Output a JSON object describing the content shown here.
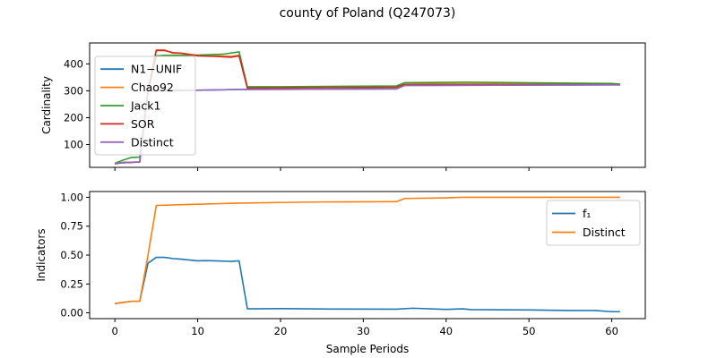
{
  "title": "county of Poland (Q247073)",
  "colors": {
    "blue": "#1f77b4",
    "orange": "#ff7f0e",
    "green": "#2ca02c",
    "red": "#d62728",
    "purple": "#9467bd"
  },
  "chart_data": [
    {
      "type": "line",
      "ylabel": "Cardinality",
      "xlim": [
        -3.05,
        64.05
      ],
      "ylim": [
        15,
        478
      ],
      "xticks": [
        0,
        10,
        20,
        30,
        40,
        50,
        60
      ],
      "yticks": [
        100,
        200,
        300,
        400
      ],
      "x_tick_labels_visible": false,
      "legend_position": "center-left",
      "grid": false,
      "series": [
        {
          "name": "N1−UNIF",
          "color": "#1f77b4",
          "points": [
            [
              0,
              30
            ],
            [
              1,
              32
            ],
            [
              2,
              33
            ],
            [
              3,
              35
            ],
            [
              4,
              300
            ],
            [
              5,
              302
            ],
            [
              10,
              302
            ],
            [
              15,
              305
            ],
            [
              16,
              305
            ],
            [
              34,
              307
            ],
            [
              35,
              320
            ],
            [
              60,
              322
            ],
            [
              61,
              322
            ]
          ]
        },
        {
          "name": "Chao92",
          "color": "#ff7f0e",
          "points": [
            [
              0,
              28
            ],
            [
              1,
              33
            ],
            [
              2,
              34
            ],
            [
              3,
              35
            ],
            [
              4,
              300
            ],
            [
              5,
              452
            ],
            [
              6,
              452
            ],
            [
              7,
              440
            ],
            [
              8,
              440
            ],
            [
              10,
              432
            ],
            [
              12,
              430
            ],
            [
              14,
              428
            ],
            [
              15,
              432
            ],
            [
              16,
              312
            ],
            [
              34,
              315
            ],
            [
              35,
              325
            ],
            [
              42,
              326
            ],
            [
              43,
              326
            ],
            [
              60,
              325
            ],
            [
              61,
              322
            ]
          ]
        },
        {
          "name": "Jack1",
          "color": "#2ca02c",
          "points": [
            [
              0,
              30
            ],
            [
              1,
              42
            ],
            [
              2,
              52
            ],
            [
              3,
              53
            ],
            [
              4,
              300
            ],
            [
              5,
              430
            ],
            [
              6,
              432
            ],
            [
              8,
              432
            ],
            [
              10,
              433
            ],
            [
              13,
              436
            ],
            [
              15,
              445
            ],
            [
              16,
              315
            ],
            [
              20,
              315
            ],
            [
              34,
              318
            ],
            [
              35,
              330
            ],
            [
              42,
              332
            ],
            [
              60,
              327
            ],
            [
              61,
              325
            ]
          ]
        },
        {
          "name": "SOR",
          "color": "#d62728",
          "points": [
            [
              0,
              28
            ],
            [
              1,
              33
            ],
            [
              2,
              34
            ],
            [
              3,
              35
            ],
            [
              4,
              300
            ],
            [
              5,
              450
            ],
            [
              6,
              450
            ],
            [
              7,
              442
            ],
            [
              8,
              440
            ],
            [
              10,
              430
            ],
            [
              12,
              428
            ],
            [
              14,
              425
            ],
            [
              15,
              430
            ],
            [
              16,
              310
            ],
            [
              34,
              313
            ],
            [
              35,
              323
            ],
            [
              60,
              323
            ],
            [
              61,
              322
            ]
          ]
        },
        {
          "name": "Distinct",
          "color": "#9467bd",
          "points": [
            [
              0,
              28
            ],
            [
              1,
              33
            ],
            [
              2,
              34
            ],
            [
              3,
              35
            ],
            [
              4,
              300
            ],
            [
              5,
              300
            ],
            [
              10,
              302
            ],
            [
              15,
              305
            ],
            [
              16,
              305
            ],
            [
              34,
              307
            ],
            [
              35,
              320
            ],
            [
              60,
              322
            ],
            [
              61,
              322
            ]
          ]
        }
      ]
    },
    {
      "type": "line",
      "ylabel": "Indicators",
      "xlabel": "Sample Periods",
      "xlim": [
        -3.05,
        64.05
      ],
      "ylim": [
        -0.05,
        1.05
      ],
      "xticks": [
        0,
        10,
        20,
        30,
        40,
        50,
        60
      ],
      "yticks": [
        0.0,
        0.25,
        0.5,
        0.75,
        1.0
      ],
      "xtick_labels": [
        "0",
        "10",
        "20",
        "30",
        "40",
        "50",
        "60"
      ],
      "ytick_labels": [
        "0.00",
        "0.25",
        "0.50",
        "0.75",
        "1.00"
      ],
      "legend_position": "upper-right",
      "grid": false,
      "series": [
        {
          "name": "f₁",
          "color": "#1f77b4",
          "points": [
            [
              0,
              0.08
            ],
            [
              1,
              0.09
            ],
            [
              2,
              0.1
            ],
            [
              3,
              0.1
            ],
            [
              4,
              0.43
            ],
            [
              5,
              0.48
            ],
            [
              6,
              0.48
            ],
            [
              7,
              0.47
            ],
            [
              8,
              0.465
            ],
            [
              10,
              0.45
            ],
            [
              11,
              0.452
            ],
            [
              13,
              0.448
            ],
            [
              14,
              0.445
            ],
            [
              15,
              0.45
            ],
            [
              16,
              0.035
            ],
            [
              20,
              0.037
            ],
            [
              22,
              0.036
            ],
            [
              26,
              0.033
            ],
            [
              34,
              0.032
            ],
            [
              36,
              0.04
            ],
            [
              40,
              0.03
            ],
            [
              42,
              0.035
            ],
            [
              43,
              0.028
            ],
            [
              50,
              0.025
            ],
            [
              55,
              0.02
            ],
            [
              58,
              0.02
            ],
            [
              60,
              0.01
            ],
            [
              61,
              0.01
            ]
          ]
        },
        {
          "name": "Distinct",
          "color": "#ff7f0e",
          "points": [
            [
              0,
              0.08
            ],
            [
              1,
              0.09
            ],
            [
              2,
              0.1
            ],
            [
              3,
              0.1
            ],
            [
              4,
              0.5
            ],
            [
              5,
              0.93
            ],
            [
              10,
              0.94
            ],
            [
              15,
              0.95
            ],
            [
              20,
              0.955
            ],
            [
              25,
              0.96
            ],
            [
              34,
              0.962
            ],
            [
              35,
              0.99
            ],
            [
              40,
              0.995
            ],
            [
              42,
              1.0
            ],
            [
              61,
              1.0
            ]
          ]
        }
      ]
    }
  ]
}
